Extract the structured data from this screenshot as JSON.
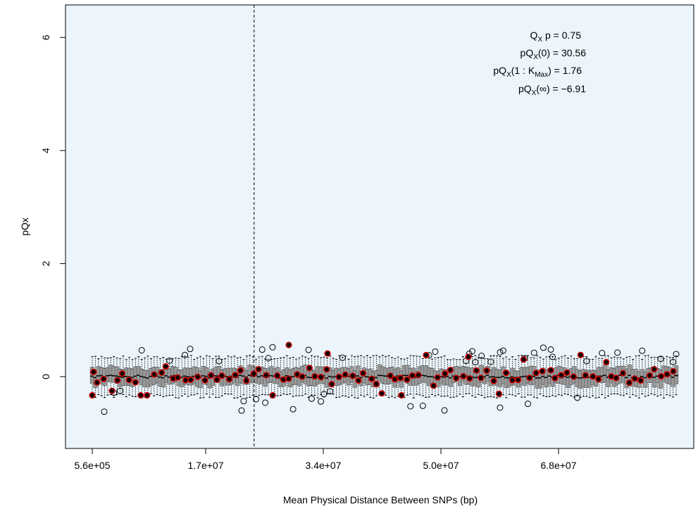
{
  "chart_data": {
    "type": "boxplot",
    "title": "",
    "xlabel": "Mean Physical Distance Between SNPs (bp)",
    "ylabel": "pQx",
    "xlim": [
      560000,
      81000000
    ],
    "ylim": [
      -1.3,
      6.6
    ],
    "x_ticks": [
      {
        "value": 560000,
        "label": "5.6e+05"
      },
      {
        "value": 17000000,
        "label": "1.7e+07"
      },
      {
        "value": 34000000,
        "label": "3.4e+07"
      },
      {
        "value": 50000000,
        "label": "5.0e+07"
      },
      {
        "value": 68000000,
        "label": "6.8e+07"
      }
    ],
    "y_ticks": [
      0,
      2,
      4,
      6
    ],
    "vline_x": 24000000,
    "n_boxes": 190,
    "box_summary": {
      "median": 0.0,
      "q1_approx": -0.12,
      "q3_approx": 0.12,
      "whisker_low_approx": -0.3,
      "whisker_high_approx": 0.3
    },
    "observed_points_range": [
      -0.33,
      0.56
    ],
    "outlier_range": [
      -0.62,
      0.52
    ],
    "colors": {
      "background": "#ebf5fb",
      "box_fill": "#999999",
      "observed_fill": "#000000",
      "observed_edge": "#cc0000",
      "vline": "#000000"
    },
    "annotations": {
      "qx_p": {
        "main": "Q",
        "sub": "X",
        "rest": " p = 0.75"
      },
      "pqx0": {
        "main": "pQ",
        "sub": "X",
        "rest": "(0) = 30.56"
      },
      "pqx1k": {
        "main": "pQ",
        "sub": "X",
        "mid": "(1 : K",
        "sub2": "Max",
        "rest": ") = 1.76"
      },
      "pqxinf": {
        "main": "pQ",
        "sub": "X",
        "rest": "(∞) = −6.91"
      }
    }
  }
}
